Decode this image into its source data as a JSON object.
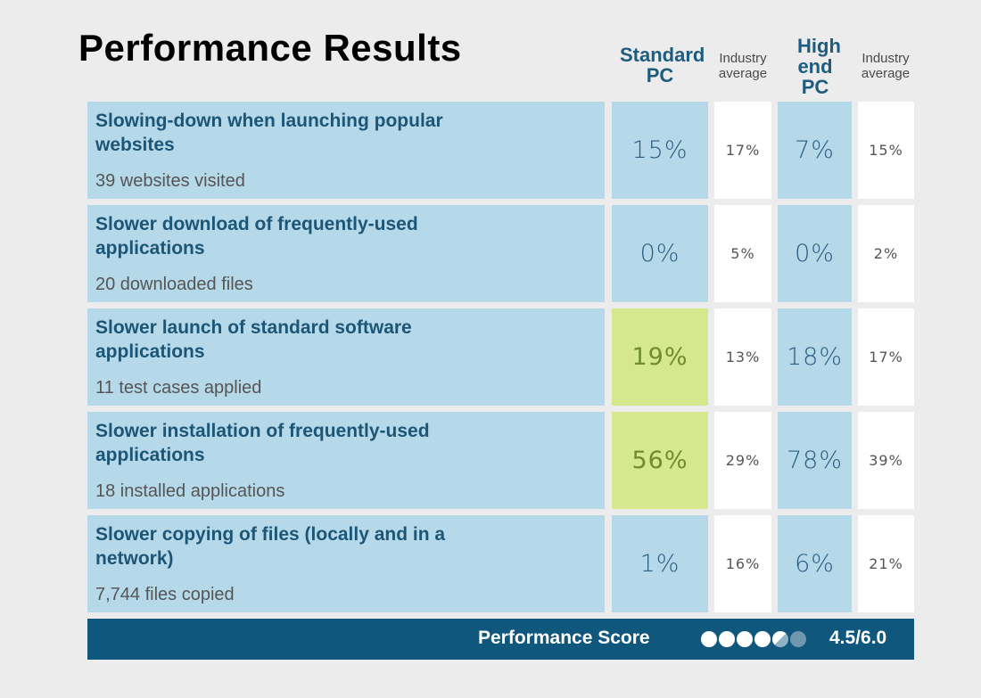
{
  "title": "Performance Results",
  "columns": {
    "standard_pc": "Standard PC",
    "industry_average_1": "Industry average",
    "high_end_pc": "High end PC",
    "industry_average_2": "Industry average"
  },
  "rows": [
    {
      "title": "Slowing-down when launching popular websites",
      "subtitle": "39 websites visited",
      "standard": "15%",
      "standard_avg": "17%",
      "high_end": "7%",
      "high_end_avg": "15%",
      "standard_highlight": false
    },
    {
      "title": "Slower download of frequently-used applications",
      "subtitle": "20 downloaded files",
      "standard": "0%",
      "standard_avg": "5%",
      "high_end": "0%",
      "high_end_avg": "2%",
      "standard_highlight": false
    },
    {
      "title": "Slower launch of standard software applications",
      "subtitle": "11 test cases applied",
      "standard": "19%",
      "standard_avg": "13%",
      "high_end": "18%",
      "high_end_avg": "17%",
      "standard_highlight": true
    },
    {
      "title": "Slower installation of frequently-used applications",
      "subtitle": "18 installed applications",
      "standard": "56%",
      "standard_avg": "29%",
      "high_end": "78%",
      "high_end_avg": "39%",
      "standard_highlight": true
    },
    {
      "title": "Slower copying of files (locally and in a network)",
      "subtitle": "7,744 files copied",
      "standard": "1%",
      "standard_avg": "16%",
      "high_end": "6%",
      "high_end_avg": "21%",
      "standard_highlight": false
    }
  ],
  "score": {
    "label": "Performance Score",
    "value": "4.5/6.0",
    "rating": 4.5,
    "max": 6
  },
  "colors": {
    "dark_blue": "#0f577c",
    "light_blue": "#b6d9ea",
    "highlight_green": "#d6e88d"
  }
}
